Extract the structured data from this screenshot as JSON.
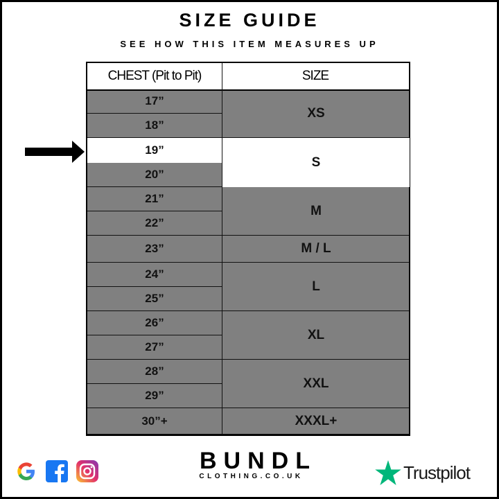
{
  "title": "SIZE GUIDE",
  "subtitle": "SEE HOW THIS ITEM MEASURES UP",
  "table": {
    "headers": [
      "CHEST (Pit to Pit)",
      "SIZE"
    ],
    "chest": [
      "17”",
      "18”",
      "19”",
      "20”",
      "21”",
      "22”",
      "23”",
      "24”",
      "25”",
      "26”",
      "27”",
      "28”",
      "29”",
      "30”+"
    ],
    "sizes": [
      {
        "label": "XS",
        "rows": [
          0,
          1
        ]
      },
      {
        "label": "S",
        "rows": [
          2,
          3
        ]
      },
      {
        "label": "M",
        "rows": [
          4,
          5
        ]
      },
      {
        "label": "M / L",
        "rows": [
          6
        ]
      },
      {
        "label": "L",
        "rows": [
          7,
          8
        ]
      },
      {
        "label": "XL",
        "rows": [
          9,
          10
        ]
      },
      {
        "label": "XXL",
        "rows": [
          11,
          12
        ]
      },
      {
        "label": "XXXL+",
        "rows": [
          13
        ]
      }
    ],
    "highlighted_chest": "19”",
    "highlighted_size": "S",
    "colors": {
      "row": "#808080",
      "highlight": "#ffffff"
    }
  },
  "footer": {
    "social_icons": [
      "google-icon",
      "facebook-icon",
      "instagram-icon"
    ],
    "brand": "BUNDL",
    "brand_sub": "CLOTHING.CO.UK",
    "trustpilot": "Trustpilot",
    "trustpilot_color": "#00b67a"
  }
}
